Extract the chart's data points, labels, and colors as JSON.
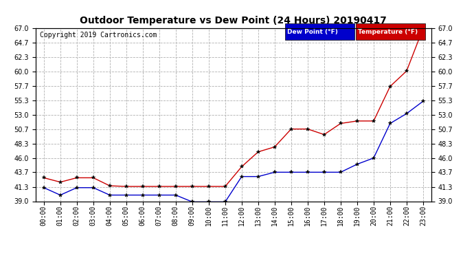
{
  "title": "Outdoor Temperature vs Dew Point (24 Hours) 20190417",
  "copyright": "Copyright 2019 Cartronics.com",
  "background_color": "#ffffff",
  "plot_background": "#ffffff",
  "grid_color": "#b0b0b0",
  "hours": [
    0,
    1,
    2,
    3,
    4,
    5,
    6,
    7,
    8,
    9,
    10,
    11,
    12,
    13,
    14,
    15,
    16,
    17,
    18,
    19,
    20,
    21,
    22,
    23
  ],
  "temperature": [
    42.8,
    42.1,
    42.8,
    42.8,
    41.5,
    41.4,
    41.4,
    41.4,
    41.4,
    41.4,
    41.4,
    41.4,
    44.6,
    47.0,
    47.8,
    50.7,
    50.7,
    49.8,
    51.6,
    52.0,
    52.0,
    57.6,
    60.1,
    67.0
  ],
  "dew_point": [
    41.2,
    40.0,
    41.2,
    41.2,
    40.0,
    40.0,
    40.0,
    40.0,
    40.0,
    38.9,
    38.9,
    38.9,
    43.0,
    43.0,
    43.7,
    43.7,
    43.7,
    43.7,
    43.7,
    45.0,
    46.0,
    51.6,
    53.2,
    55.2
  ],
  "temp_color": "#cc0000",
  "dew_color": "#0000cc",
  "marker_color": "#000000",
  "ylim_min": 39.0,
  "ylim_max": 67.0,
  "yticks": [
    39.0,
    41.3,
    43.7,
    46.0,
    48.3,
    50.7,
    53.0,
    55.3,
    57.7,
    60.0,
    62.3,
    64.7,
    67.0
  ],
  "legend_dew_bg": "#0000cc",
  "legend_temp_bg": "#cc0000",
  "legend_text_color": "#ffffff",
  "title_fontsize": 10,
  "tick_fontsize": 7,
  "copyright_fontsize": 7
}
